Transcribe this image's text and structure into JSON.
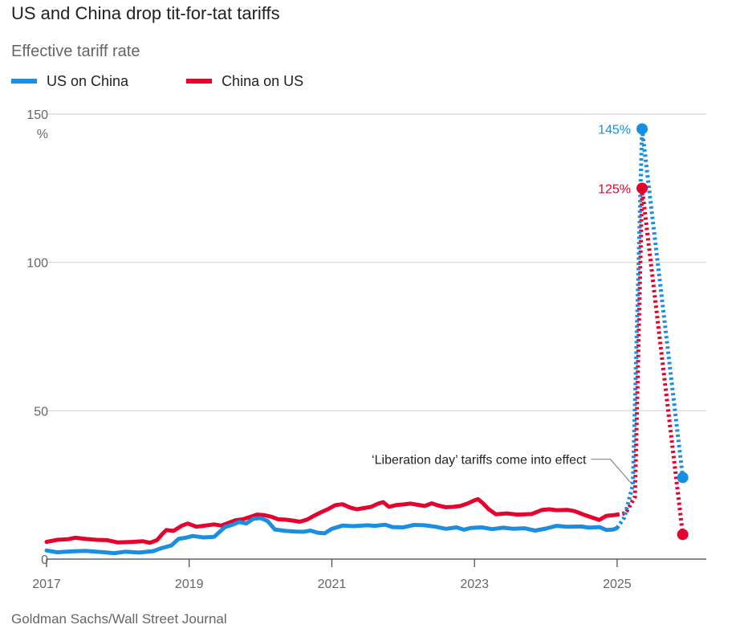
{
  "title": "US and China drop tit-for-tat tariffs",
  "subtitle": "Effective tariff rate",
  "source": "Goldman Sachs/Wall Street Journal",
  "legend": [
    {
      "label": "US on China",
      "color": "#1a8ee0"
    },
    {
      "label": "China on US",
      "color": "#e4032e"
    }
  ],
  "chart_data": {
    "type": "line",
    "ylim": [
      0,
      150
    ],
    "xlim": [
      2017.0,
      2026.25
    ],
    "y_ticks": [
      "0",
      "50",
      "100",
      "150"
    ],
    "y_unit": "%",
    "x_ticks": [
      "2017",
      "2019",
      "2021",
      "2023",
      "2025"
    ],
    "grid": true,
    "legend_position": "top-left",
    "series": [
      {
        "name": "US on China",
        "color": "#1a8ee0",
        "solid": [
          [
            2017.0,
            2.9
          ],
          [
            2017.15,
            2.3
          ],
          [
            2017.35,
            2.6
          ],
          [
            2017.55,
            2.8
          ],
          [
            2017.75,
            2.4
          ],
          [
            2017.95,
            2.0
          ],
          [
            2018.1,
            2.5
          ],
          [
            2018.3,
            2.2
          ],
          [
            2018.5,
            2.7
          ],
          [
            2018.6,
            3.6
          ],
          [
            2018.75,
            4.6
          ],
          [
            2018.85,
            6.8
          ],
          [
            2018.95,
            7.2
          ],
          [
            2019.05,
            7.8
          ],
          [
            2019.2,
            7.3
          ],
          [
            2019.35,
            7.5
          ],
          [
            2019.5,
            10.8
          ],
          [
            2019.6,
            11.5
          ],
          [
            2019.7,
            12.5
          ],
          [
            2019.8,
            12.0
          ],
          [
            2019.9,
            13.6
          ],
          [
            2020.0,
            13.8
          ],
          [
            2020.1,
            12.8
          ],
          [
            2020.2,
            10.0
          ],
          [
            2020.35,
            9.5
          ],
          [
            2020.5,
            9.3
          ],
          [
            2020.6,
            9.2
          ],
          [
            2020.7,
            9.6
          ],
          [
            2020.8,
            8.9
          ],
          [
            2020.9,
            8.7
          ],
          [
            2021.0,
            10.2
          ],
          [
            2021.15,
            11.3
          ],
          [
            2021.3,
            11.1
          ],
          [
            2021.5,
            11.4
          ],
          [
            2021.6,
            11.2
          ],
          [
            2021.75,
            11.6
          ],
          [
            2021.85,
            10.8
          ],
          [
            2022.0,
            10.7
          ],
          [
            2022.15,
            11.5
          ],
          [
            2022.3,
            11.4
          ],
          [
            2022.45,
            10.9
          ],
          [
            2022.6,
            10.2
          ],
          [
            2022.75,
            10.7
          ],
          [
            2022.85,
            9.9
          ],
          [
            2022.95,
            10.5
          ],
          [
            2023.1,
            10.7
          ],
          [
            2023.25,
            10.1
          ],
          [
            2023.4,
            10.6
          ],
          [
            2023.55,
            10.2
          ],
          [
            2023.7,
            10.4
          ],
          [
            2023.85,
            9.6
          ],
          [
            2024.0,
            10.3
          ],
          [
            2024.15,
            11.2
          ],
          [
            2024.3,
            10.9
          ],
          [
            2024.5,
            11.0
          ],
          [
            2024.6,
            10.6
          ],
          [
            2024.75,
            10.8
          ],
          [
            2024.85,
            9.8
          ],
          [
            2024.95,
            10.0
          ],
          [
            2025.0,
            10.5
          ]
        ],
        "projected": [
          [
            2025.0,
            10.5
          ],
          [
            2025.1,
            14.0
          ],
          [
            2025.22,
            25.0
          ],
          [
            2025.35,
            145.0
          ],
          [
            2025.92,
            27.5
          ]
        ],
        "marker_points": [
          [
            2025.35,
            145.0
          ],
          [
            2025.92,
            27.5
          ]
        ],
        "peak_label": "145%"
      },
      {
        "name": "China on US",
        "color": "#e4032e",
        "solid": [
          [
            2017.0,
            5.8
          ],
          [
            2017.15,
            6.5
          ],
          [
            2017.3,
            6.7
          ],
          [
            2017.4,
            7.2
          ],
          [
            2017.55,
            6.8
          ],
          [
            2017.7,
            6.5
          ],
          [
            2017.85,
            6.4
          ],
          [
            2018.0,
            5.6
          ],
          [
            2018.2,
            5.8
          ],
          [
            2018.35,
            6.0
          ],
          [
            2018.45,
            5.5
          ],
          [
            2018.55,
            6.4
          ],
          [
            2018.62,
            8.4
          ],
          [
            2018.68,
            9.8
          ],
          [
            2018.78,
            9.5
          ],
          [
            2018.9,
            11.3
          ],
          [
            2018.98,
            12.0
          ],
          [
            2019.1,
            10.9
          ],
          [
            2019.2,
            11.2
          ],
          [
            2019.35,
            11.7
          ],
          [
            2019.45,
            11.3
          ],
          [
            2019.55,
            12.2
          ],
          [
            2019.65,
            13.1
          ],
          [
            2019.75,
            13.4
          ],
          [
            2019.85,
            14.2
          ],
          [
            2019.95,
            15.0
          ],
          [
            2020.05,
            14.8
          ],
          [
            2020.15,
            14.3
          ],
          [
            2020.25,
            13.4
          ],
          [
            2020.35,
            13.3
          ],
          [
            2020.45,
            13.0
          ],
          [
            2020.55,
            12.6
          ],
          [
            2020.65,
            13.3
          ],
          [
            2020.75,
            14.6
          ],
          [
            2020.85,
            15.8
          ],
          [
            2020.95,
            16.9
          ],
          [
            2021.05,
            18.2
          ],
          [
            2021.15,
            18.5
          ],
          [
            2021.25,
            17.4
          ],
          [
            2021.35,
            16.8
          ],
          [
            2021.45,
            17.2
          ],
          [
            2021.55,
            17.6
          ],
          [
            2021.65,
            18.7
          ],
          [
            2021.72,
            19.2
          ],
          [
            2021.8,
            17.6
          ],
          [
            2021.9,
            18.2
          ],
          [
            2022.0,
            18.4
          ],
          [
            2022.1,
            18.7
          ],
          [
            2022.2,
            18.3
          ],
          [
            2022.3,
            17.9
          ],
          [
            2022.4,
            18.8
          ],
          [
            2022.5,
            18.0
          ],
          [
            2022.6,
            17.5
          ],
          [
            2022.7,
            17.6
          ],
          [
            2022.8,
            17.9
          ],
          [
            2022.9,
            18.7
          ],
          [
            2023.0,
            19.8
          ],
          [
            2023.05,
            20.2
          ],
          [
            2023.12,
            18.8
          ],
          [
            2023.2,
            16.8
          ],
          [
            2023.3,
            15.1
          ],
          [
            2023.45,
            15.4
          ],
          [
            2023.6,
            15.0
          ],
          [
            2023.8,
            15.2
          ],
          [
            2023.95,
            16.6
          ],
          [
            2024.05,
            16.8
          ],
          [
            2024.15,
            16.5
          ],
          [
            2024.3,
            16.6
          ],
          [
            2024.4,
            16.2
          ],
          [
            2024.55,
            14.8
          ],
          [
            2024.65,
            14.0
          ],
          [
            2024.75,
            13.2
          ],
          [
            2024.85,
            14.6
          ],
          [
            2024.95,
            14.8
          ],
          [
            2025.0,
            15.0
          ]
        ],
        "projected": [
          [
            2025.0,
            15.0
          ],
          [
            2025.12,
            15.5
          ],
          [
            2025.25,
            21.0
          ],
          [
            2025.35,
            125.0
          ],
          [
            2025.92,
            8.3
          ]
        ],
        "marker_points": [
          [
            2025.35,
            125.0
          ],
          [
            2025.92,
            8.3
          ]
        ],
        "peak_label": "125%"
      }
    ],
    "annotation": {
      "text": "‘Liberation day’ tariffs come into effect",
      "point": [
        2025.22,
        25.0
      ]
    }
  }
}
